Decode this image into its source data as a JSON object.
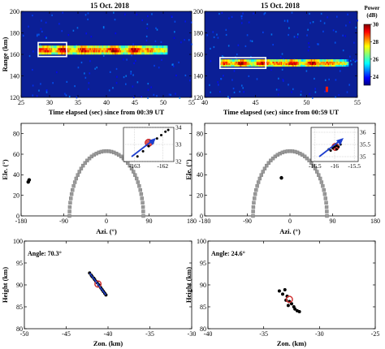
{
  "chart_data": [
    {
      "type": "heatmap",
      "panel": "a",
      "title": "15 Oct. 2018",
      "xlabel": "Time elapsed (sec) since from 00:39 UT",
      "ylabel": "Range (km)",
      "xlim": [
        25,
        55
      ],
      "ylim": [
        120,
        200
      ],
      "xticks": [
        25,
        30,
        35,
        40,
        45,
        50,
        55
      ],
      "yticks": [
        120,
        140,
        160,
        180,
        200
      ],
      "trail": {
        "x_start": 28,
        "x_end": 50.5,
        "range": [
          160,
          168
        ]
      },
      "highlight_box": {
        "x": [
          28,
          33
        ],
        "range": [
          158,
          171
        ]
      }
    },
    {
      "type": "heatmap",
      "panel": "b",
      "title": "15 Oct. 2018",
      "xlabel": "Time elapsed (sec) since from 00:59 UT",
      "ylabel": "",
      "xlim": [
        40,
        55
      ],
      "ylim": [
        120,
        200
      ],
      "xticks": [
        40,
        45,
        50,
        55
      ],
      "yticks": [
        120,
        140,
        160,
        180,
        200
      ],
      "colorbar": {
        "title": "Power",
        "unit": "(dB)",
        "range": [
          23,
          30
        ],
        "ticks": [
          24,
          26,
          28,
          30
        ]
      },
      "trail": {
        "x_start": 41.5,
        "x_end": 54,
        "range": [
          149,
          155
        ]
      },
      "echo": {
        "x": 52,
        "range": [
          125,
          130
        ]
      },
      "highlight_box": {
        "x": [
          41.5,
          46
        ],
        "range": [
          147,
          157
        ]
      }
    },
    {
      "type": "scatter",
      "panel": "c",
      "xlabel": "Azi. (°)",
      "ylabel": "Ele. (°)",
      "xlim": [
        -180,
        180
      ],
      "ylim": [
        0,
        90
      ],
      "xticks": [
        -180,
        -90,
        0,
        90,
        180
      ],
      "yticks": [
        0,
        20,
        40,
        60,
        80
      ],
      "points": [
        [
          -165,
          33
        ],
        [
          -163,
          35
        ]
      ],
      "beam_arc": {
        "center_azi": 0,
        "radius_azi": 78,
        "max_elev": 63
      },
      "inset": {
        "xlim": [
          -163.4,
          -161.6
        ],
        "ylim": [
          32,
          34
        ],
        "xticks": [
          -163,
          -162
        ],
        "yticks": [
          32,
          33,
          34
        ],
        "points": [
          [
            -162.9,
            32.3
          ],
          [
            -162.7,
            32.6
          ],
          [
            -162.5,
            32.9
          ],
          [
            -162.35,
            33.1
          ],
          [
            -162.2,
            33.35
          ],
          [
            -162.05,
            33.55
          ],
          [
            -161.9,
            33.75
          ],
          [
            -161.8,
            33.85
          ]
        ],
        "mean": [
          -162.5,
          33.1
        ]
      }
    },
    {
      "type": "scatter",
      "panel": "d",
      "xlabel": "Azi. (°)",
      "ylabel": "Ele. (°)",
      "xlim": [
        -180,
        180
      ],
      "ylim": [
        0,
        90
      ],
      "xticks": [
        -180,
        -90,
        0,
        90,
        180
      ],
      "yticks": [
        0,
        20,
        40,
        60,
        80
      ],
      "points": [
        [
          -18,
          37
        ]
      ],
      "beam_arc": {
        "center_azi": 0,
        "radius_azi": 78,
        "max_elev": 63
      },
      "inset": {
        "xlim": [
          -16.6,
          -15.4
        ],
        "ylim": [
          34.8,
          36.2
        ],
        "xticks": [
          -16.5,
          -16,
          -15.5
        ],
        "yticks": [
          35,
          35.5,
          36
        ],
        "points": [
          [
            -16.15,
            35.3
          ],
          [
            -16.05,
            35.35
          ],
          [
            -16.0,
            35.4
          ],
          [
            -15.95,
            35.45
          ],
          [
            -15.9,
            35.4
          ],
          [
            -15.85,
            35.5
          ],
          [
            -15.95,
            35.3
          ],
          [
            -16.1,
            35.25
          ]
        ],
        "mean": [
          -15.98,
          35.4
        ]
      }
    },
    {
      "type": "scatter",
      "panel": "e",
      "annotation": "Angle: 70.3°",
      "xlabel": "Zon. (km)",
      "ylabel": "Height (km)",
      "xlim": [
        -50,
        -30
      ],
      "ylim": [
        80,
        100
      ],
      "xticks": [
        -50,
        -45,
        -40,
        -35,
        -30
      ],
      "yticks": [
        80,
        85,
        90,
        95,
        100
      ],
      "points": [
        [
          -42.2,
          92.7
        ],
        [
          -42.0,
          92.2
        ],
        [
          -41.9,
          91.9
        ],
        [
          -41.7,
          91.5
        ],
        [
          -41.6,
          91.2
        ],
        [
          -41.45,
          90.8
        ],
        [
          -41.3,
          90.5
        ],
        [
          -41.1,
          90.0
        ],
        [
          -41.0,
          89.7
        ],
        [
          -40.85,
          89.3
        ],
        [
          -40.7,
          88.9
        ],
        [
          -40.55,
          88.5
        ],
        [
          -40.4,
          88.1
        ],
        [
          -40.25,
          87.7
        ]
      ],
      "mean": [
        -41.2,
        90.2
      ]
    },
    {
      "type": "scatter",
      "panel": "f",
      "annotation": "Angle: 24.6°",
      "xlabel": "Zon. (km)",
      "ylabel": "Height (km)",
      "xlim": [
        -40,
        -25
      ],
      "ylim": [
        80,
        100
      ],
      "xticks": [
        -40,
        -35,
        -30,
        -25
      ],
      "yticks": [
        80,
        85,
        90,
        95,
        100
      ],
      "points": [
        [
          -33.6,
          88.6
        ],
        [
          -33.1,
          88.9
        ],
        [
          -33.3,
          87.9
        ],
        [
          -32.9,
          87.4
        ],
        [
          -33.0,
          86.5
        ],
        [
          -32.7,
          86.2
        ],
        [
          -32.5,
          85.7
        ],
        [
          -32.8,
          85.3
        ],
        [
          -32.3,
          85.0
        ],
        [
          -32.2,
          84.5
        ],
        [
          -32.0,
          84.1
        ],
        [
          -31.8,
          83.9
        ]
      ],
      "mean": [
        -32.7,
        86.7
      ]
    }
  ]
}
